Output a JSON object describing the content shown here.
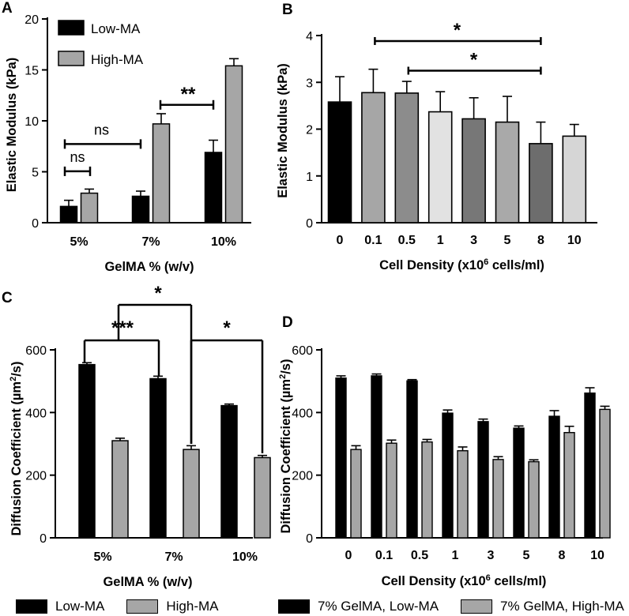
{
  "panels": {
    "a": "A",
    "b": "B",
    "c": "C",
    "d": "D"
  },
  "colors": {
    "black": "#000000",
    "gray": "#a6a6a6",
    "g5": "#a9a9a9",
    "g6": "#d6d6d6",
    "g7": "#777777",
    "lightgray": "#e2e2e2"
  },
  "bottom_legend": {
    "left": [
      {
        "label": "Low-MA",
        "color": "#000000"
      },
      {
        "label": "High-MA",
        "color": "#a6a6a6"
      }
    ],
    "right": [
      {
        "label": "7% GelMA, Low-MA",
        "color": "#000000"
      },
      {
        "label": "7% GelMA, High-MA",
        "color": "#a6a6a6"
      }
    ]
  },
  "chart_data": [
    {
      "id": "A",
      "type": "bar",
      "xlabel": "GelMA % (w/v)",
      "ylabel": "Elastic Modulus (kPa)",
      "ylim": [
        0,
        20
      ],
      "yticks": [
        0,
        5,
        10,
        15,
        20
      ],
      "categories": [
        "5%",
        "7%",
        "10%"
      ],
      "series": [
        {
          "name": "Low-MA",
          "color": "#000000",
          "values": [
            1.6,
            2.6,
            6.9
          ],
          "errors": [
            0.6,
            0.5,
            1.2
          ]
        },
        {
          "name": "High-MA",
          "color": "#a6a6a6",
          "values": [
            2.9,
            9.7,
            15.4
          ],
          "errors": [
            0.4,
            1.0,
            0.7
          ]
        }
      ],
      "legend": {
        "position": "top-left",
        "entries": [
          "Low-MA",
          "High-MA"
        ]
      },
      "annotations": [
        {
          "label": "ns",
          "from": [
            "5%",
            "Low-MA"
          ],
          "to": [
            "5%",
            "High-MA"
          ],
          "y": 5.2
        },
        {
          "label": "ns",
          "from": [
            "5%",
            "Low-MA"
          ],
          "to": [
            "7%",
            "Low-MA"
          ],
          "y": 7.8
        },
        {
          "label": "**",
          "from": [
            "10%",
            "Low-MA"
          ],
          "to": [
            "7%",
            "High-MA"
          ],
          "y": 11.8,
          "order": "reverse"
        }
      ]
    },
    {
      "id": "B",
      "type": "bar",
      "xlabel": "Cell Density (x10",
      "xlabel_sup": "6",
      "xlabel_end": " cells/ml)",
      "ylabel": "Elastic Modulus (kPa)",
      "ylim": [
        0,
        4
      ],
      "yticks": [
        0,
        1,
        2,
        3,
        4
      ],
      "categories": [
        "0",
        "0.1",
        "0.5",
        "1",
        "3",
        "5",
        "8",
        "10"
      ],
      "values": [
        2.58,
        2.78,
        2.77,
        2.37,
        2.22,
        2.15,
        1.69,
        1.85
      ],
      "errors": [
        0.54,
        0.5,
        0.25,
        0.43,
        0.45,
        0.55,
        0.46,
        0.25
      ],
      "colors": [
        "#000000",
        "#a6a6a6",
        "#8c8c8c",
        "#e2e2e2",
        "#777777",
        "#a9a9a9",
        "#6d6d6d",
        "#d6d6d6"
      ],
      "annotations": [
        {
          "label": "*",
          "from": "0.1",
          "to": "8",
          "y": 3.95
        },
        {
          "label": "*",
          "from": "0.5",
          "to": "8",
          "y": 3.35
        }
      ]
    },
    {
      "id": "C",
      "type": "bar",
      "xlabel": "GelMA % (w/v)",
      "ylabel": "Diffusion Coefficient (µm²/s)",
      "ylabel_main": "Diffusion Coefficient (µm",
      "ylabel_sup": "2",
      "ylabel_end": "/s)",
      "ylim": [
        0,
        600
      ],
      "yticks": [
        0,
        200,
        400,
        600
      ],
      "categories": [
        "5%",
        "7%",
        "10%"
      ],
      "series": [
        {
          "name": "Low-MA",
          "color": "#000000",
          "values": [
            553,
            508,
            422
          ],
          "errors": [
            6,
            8,
            5
          ]
        },
        {
          "name": "High-MA",
          "color": "#a6a6a6",
          "values": [
            310,
            282,
            256
          ],
          "errors": [
            8,
            12,
            7
          ]
        }
      ],
      "annotations": [
        {
          "label": "***",
          "from": [
            "5%",
            "Low-MA"
          ],
          "to": [
            "7%",
            "Low-MA"
          ],
          "y": 635
        },
        {
          "label": "*",
          "from": [
            "5%",
            "Low-MA"
          ],
          "to": [
            "7%",
            "High-MA"
          ],
          "y": 735,
          "style": "drop-right"
        },
        {
          "label": "*",
          "from": [
            "7%",
            "High-MA"
          ],
          "to": [
            "10%",
            "High-MA"
          ],
          "y": 635
        }
      ]
    },
    {
      "id": "D",
      "type": "bar",
      "xlabel": "Cell Density (x10",
      "xlabel_sup": "6",
      "xlabel_end": " cells/ml)",
      "ylabel_main": "Diffusion Coefficient (µm",
      "ylabel_sup": "2",
      "ylabel_end": "/s)",
      "ylim": [
        0,
        600
      ],
      "yticks": [
        0,
        200,
        400,
        600
      ],
      "categories": [
        "0",
        "0.1",
        "0.5",
        "1",
        "3",
        "5",
        "8",
        "10"
      ],
      "series": [
        {
          "name": "7% GelMA, Low-MA",
          "color": "#000000",
          "values": [
            510,
            517,
            501,
            398,
            371,
            350,
            388,
            462
          ],
          "errors": [
            7,
            6,
            4,
            10,
            8,
            7,
            18,
            17
          ]
        },
        {
          "name": "7% GelMA, High-MA",
          "color": "#a6a6a6",
          "values": [
            282,
            302,
            306,
            278,
            250,
            243,
            336,
            410
          ],
          "errors": [
            12,
            10,
            8,
            12,
            9,
            6,
            20,
            10
          ]
        }
      ]
    }
  ]
}
